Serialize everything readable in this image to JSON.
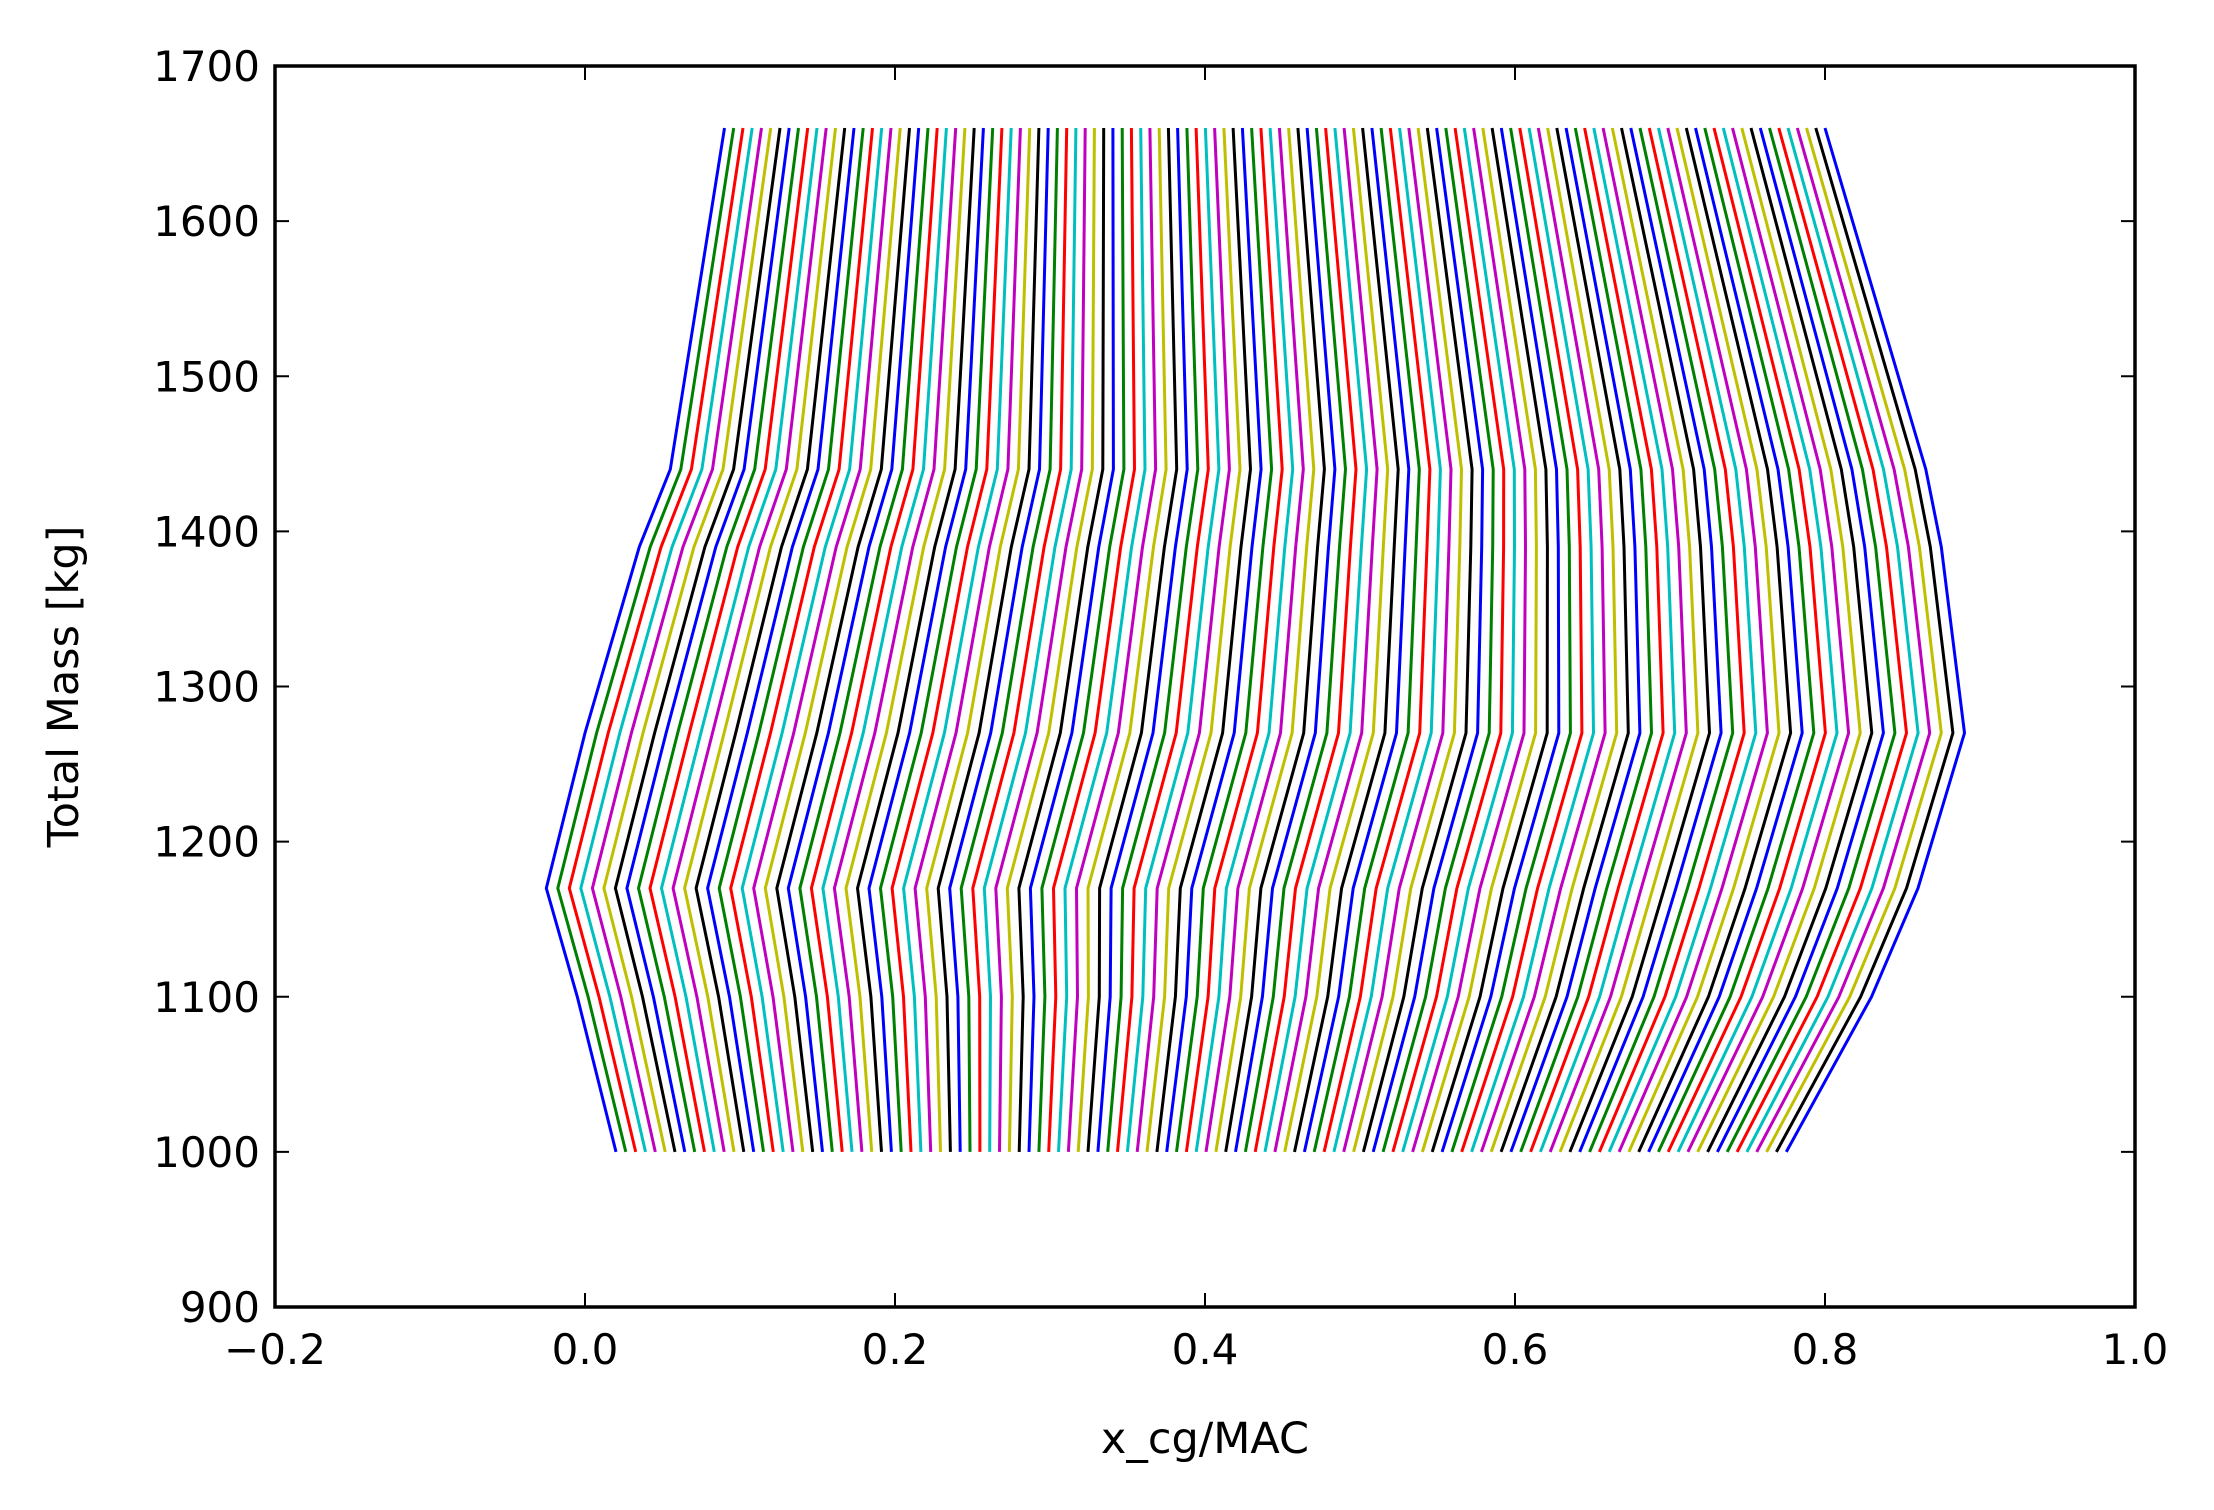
{
  "chart_data": {
    "type": "line",
    "title": "",
    "xlabel": "x_cg/MAC",
    "ylabel": "Total Mass [kg]",
    "xlim": [
      -0.2,
      1.0
    ],
    "ylim": [
      900,
      1700
    ],
    "xticks": [
      -0.2,
      0.0,
      0.2,
      0.4,
      0.6,
      0.8,
      1.0
    ],
    "xtick_labels": [
      "−0.2",
      "0.0",
      "0.2",
      "0.4",
      "0.6",
      "0.8",
      "1.0"
    ],
    "yticks": [
      900,
      1000,
      1100,
      1200,
      1300,
      1400,
      1500,
      1600,
      1700
    ],
    "ytick_labels": [
      "900",
      "1000",
      "1100",
      "1200",
      "1300",
      "1400",
      "1500",
      "1600",
      "1700"
    ],
    "grid": false,
    "legend": "none",
    "color_cycle": [
      "#0000ff",
      "#008000",
      "#ff0000",
      "#00bfbf",
      "#bf00bf",
      "#bfbf00",
      "#000000"
    ],
    "series_family": {
      "count": 120,
      "mass_points": [
        1000,
        1100,
        1170,
        1270,
        1390,
        1440,
        1660
      ],
      "first_curve_x": [
        0.02,
        -0.005,
        -0.025,
        0.0,
        0.035,
        0.055,
        0.09
      ],
      "last_curve_x": [
        0.775,
        0.83,
        0.86,
        0.89,
        0.875,
        0.865,
        0.8
      ],
      "x_step_per_curve": 0.0064
    }
  }
}
